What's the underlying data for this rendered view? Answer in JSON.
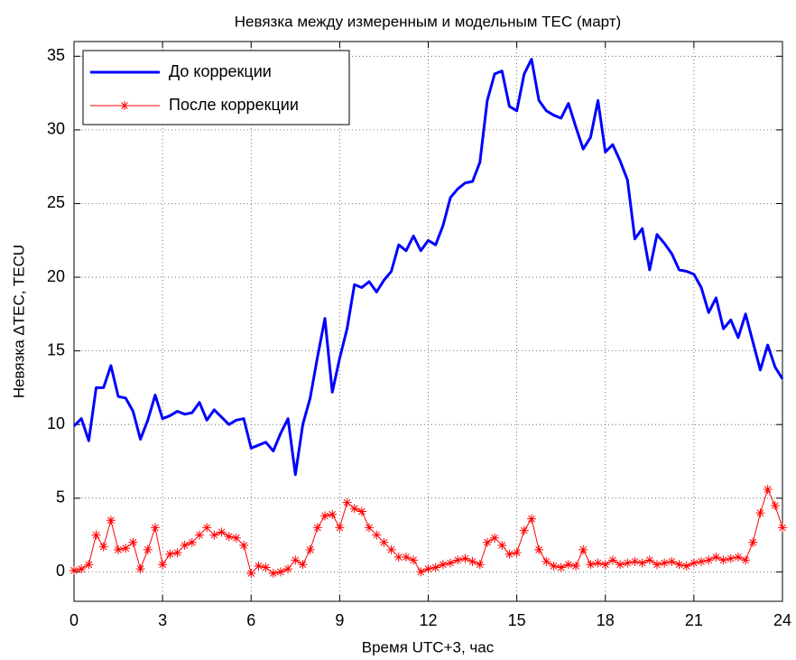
{
  "chart_data": {
    "type": "line",
    "title": "Невязка между измеренным и модельным TEC (март)",
    "x_label": "Время UTC+3, час",
    "y_label": "Невязка ΔTEC, TECU",
    "x": [
      0,
      0.25,
      0.5,
      0.75,
      1,
      1.25,
      1.5,
      1.75,
      2,
      2.25,
      2.5,
      2.75,
      3,
      3.25,
      3.5,
      3.75,
      4,
      4.25,
      4.5,
      4.75,
      5,
      5.25,
      5.5,
      5.75,
      6,
      6.25,
      6.5,
      6.75,
      7,
      7.25,
      7.5,
      7.75,
      8,
      8.25,
      8.5,
      8.75,
      9,
      9.25,
      9.5,
      9.75,
      10,
      10.25,
      10.5,
      10.75,
      11,
      11.25,
      11.5,
      11.75,
      12,
      12.25,
      12.5,
      12.75,
      13,
      13.25,
      13.5,
      13.75,
      14,
      14.25,
      14.5,
      14.75,
      15,
      15.25,
      15.5,
      15.75,
      16,
      16.25,
      16.5,
      16.75,
      17,
      17.25,
      17.5,
      17.75,
      18,
      18.25,
      18.5,
      18.75,
      19,
      19.25,
      19.5,
      19.75,
      20,
      20.25,
      20.5,
      20.75,
      21,
      21.25,
      21.5,
      21.75,
      22,
      22.25,
      22.5,
      22.75,
      23,
      23.25,
      23.5,
      23.75,
      24
    ],
    "series": [
      {
        "name": "До коррекции",
        "color": "#0000ff",
        "marker": "none",
        "values": [
          9.9,
          10.4,
          8.9,
          12.5,
          12.5,
          14,
          11.9,
          11.8,
          10.9,
          9,
          10.3,
          12,
          10.4,
          10.6,
          10.9,
          10.7,
          10.8,
          11.5,
          10.3,
          11,
          10.5,
          10,
          10.3,
          10.4,
          8.4,
          8.6,
          8.8,
          8.2,
          9.4,
          10.4,
          6.6,
          10,
          11.8,
          14.6,
          17.2,
          12.2,
          14.5,
          16.5,
          19.5,
          19.3,
          19.7,
          19,
          19.8,
          20.4,
          22.2,
          21.8,
          22.8,
          21.8,
          22.5,
          22.2,
          23.5,
          25.4,
          26,
          26.4,
          26.5,
          27.8,
          32,
          33.8,
          34,
          31.6,
          31.3,
          33.8,
          34.8,
          32,
          31.3,
          31,
          30.8,
          31.8,
          30.2,
          28.7,
          29.5,
          32,
          28.5,
          29,
          27.9,
          26.6,
          22.6,
          23.3,
          20.5,
          22.9,
          22.3,
          21.6,
          20.5,
          20.4,
          20.2,
          19.3,
          17.6,
          18.6,
          16.5,
          17.1,
          15.9,
          17.5,
          15.6,
          13.7,
          15.4,
          13.9,
          13.1
        ]
      },
      {
        "name": "После коррекции",
        "color": "#ff0000",
        "marker": "star",
        "values": [
          0.1,
          0.2,
          0.5,
          2.5,
          1.7,
          3.5,
          1.5,
          1.6,
          2,
          0.2,
          1.5,
          3,
          0.5,
          1.2,
          1.3,
          1.8,
          2,
          2.5,
          3,
          2.5,
          2.7,
          2.4,
          2.3,
          1.8,
          -0.1,
          0.4,
          0.3,
          -0.1,
          0,
          0.2,
          0.8,
          0.5,
          1.5,
          3,
          3.8,
          3.9,
          3,
          4.7,
          4.3,
          4.1,
          3,
          2.5,
          2,
          1.5,
          1,
          1,
          0.8,
          0,
          0.2,
          0.3,
          0.5,
          0.6,
          0.8,
          0.9,
          0.7,
          0.5,
          2,
          2.3,
          1.8,
          1.2,
          1.3,
          2.8,
          3.6,
          1.5,
          0.7,
          0.4,
          0.3,
          0.5,
          0.4,
          1.5,
          0.5,
          0.6,
          0.5,
          0.8,
          0.5,
          0.6,
          0.7,
          0.6,
          0.8,
          0.5,
          0.6,
          0.7,
          0.5,
          0.4,
          0.6,
          0.7,
          0.8,
          1,
          0.8,
          0.9,
          1,
          0.8,
          2,
          4,
          5.6,
          4.5,
          3
        ]
      }
    ],
    "xlim": [
      0,
      24
    ],
    "xticks": [
      0,
      3,
      6,
      9,
      12,
      15,
      18,
      21,
      24
    ],
    "ylim": [
      -2,
      36
    ],
    "yticks": [
      0,
      5,
      10,
      15,
      20,
      25,
      30,
      35
    ],
    "grid": true,
    "legend": "upper left"
  }
}
